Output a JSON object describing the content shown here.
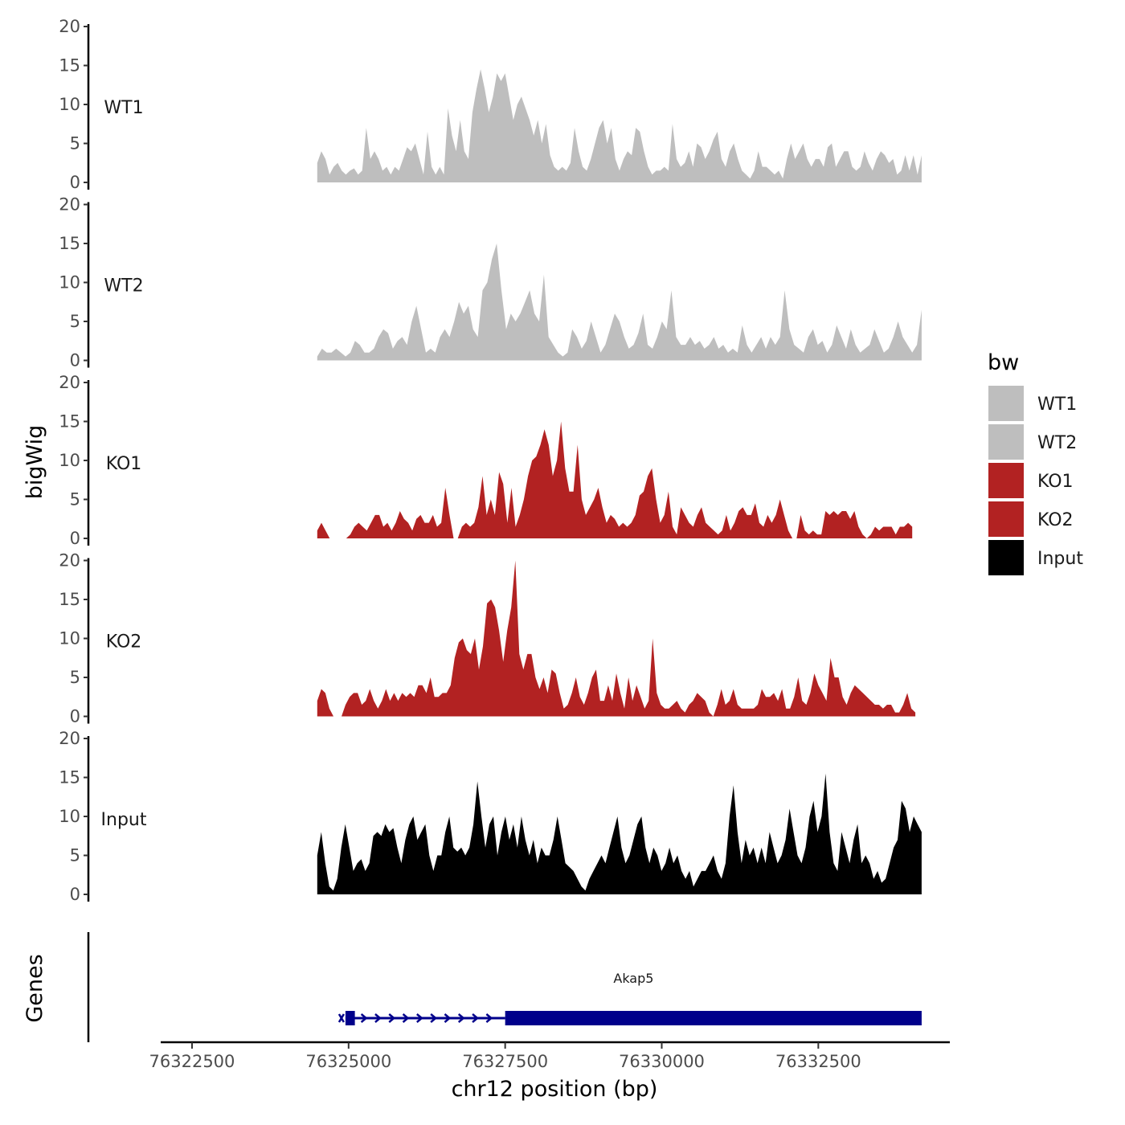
{
  "chart_data": {
    "type": "area",
    "ylabel": "bigWig",
    "genes_label": "Genes",
    "xlabel": "chr12 position (bp)",
    "xlim": [
      76322000,
      76334600
    ],
    "xticks": [
      76322500,
      76325000,
      76327500,
      76330000,
      76332500
    ],
    "xtick_labels": [
      "76322500",
      "76325000",
      "76327500",
      "76330000",
      "76332500"
    ],
    "ylim": [
      0,
      20
    ],
    "yticks": [
      0,
      5,
      10,
      15,
      20
    ],
    "ytick_labels": [
      "0",
      "5",
      "10",
      "15",
      "20"
    ],
    "series": [
      {
        "name": "WT1",
        "color": "#bebebe",
        "x_start": 76324500,
        "x_end": 76334150,
        "values": [
          2.5,
          4,
          3,
          1,
          2,
          2.5,
          1.5,
          1,
          1.5,
          1.8,
          1,
          1.5,
          7,
          3,
          4,
          3,
          1.5,
          2,
          1,
          2,
          1.5,
          3,
          4.5,
          4,
          5,
          3,
          1,
          6.5,
          2,
          1,
          2,
          1,
          9.5,
          6,
          4,
          8,
          4,
          3,
          9,
          12,
          14.5,
          12,
          9,
          11,
          14,
          13,
          14,
          11,
          8,
          10,
          11,
          9.5,
          8,
          6,
          8,
          5,
          7.5,
          3.5,
          2,
          1.5,
          2,
          1.5,
          2.5,
          7,
          4,
          2,
          1.5,
          3,
          5,
          7,
          8,
          5,
          7,
          3,
          1.5,
          3,
          4,
          3.5,
          7,
          6.5,
          4,
          2,
          1,
          1.5,
          1.5,
          2,
          1.5,
          7.5,
          3,
          2,
          2.5,
          4,
          2,
          5,
          4.5,
          3,
          4,
          5.5,
          6.5,
          3,
          2,
          4,
          5,
          3,
          1.5,
          1,
          0.5,
          1.5,
          4,
          2,
          2,
          1.5,
          1,
          1.5,
          0.5,
          3,
          5,
          3,
          4,
          5,
          3,
          2,
          3,
          3,
          2,
          4.5,
          5,
          2,
          3,
          4,
          4,
          2,
          1.5,
          2,
          4,
          2.5,
          1.5,
          3,
          4,
          3.5,
          2.5,
          3,
          1,
          1.5,
          3.5,
          1.5,
          3.5,
          1,
          3.5
        ]
      },
      {
        "name": "WT2",
        "color": "#bebebe",
        "x_start": 76324500,
        "x_end": 76334150,
        "values": [
          0.5,
          1.5,
          1,
          1,
          1.5,
          1,
          0.5,
          1,
          2.5,
          2,
          1,
          1,
          1.5,
          3,
          4,
          3.5,
          1.5,
          2.5,
          3,
          2,
          5,
          7,
          4,
          1,
          1.5,
          1,
          3,
          4,
          3,
          5,
          7.5,
          6,
          7,
          4,
          3,
          9,
          10,
          13,
          15,
          9,
          4,
          6,
          5,
          6,
          7.5,
          9,
          6,
          5,
          11,
          3,
          2,
          1,
          0.5,
          1,
          4,
          3,
          1.5,
          2.5,
          5,
          3,
          1,
          2,
          4,
          6,
          5,
          3,
          1.5,
          2,
          3.5,
          6,
          2,
          1.5,
          3,
          5,
          4,
          9,
          3,
          2,
          2,
          3,
          2,
          2.5,
          1.5,
          2,
          3,
          1.5,
          2,
          1,
          1.5,
          1,
          4.5,
          2,
          1,
          2,
          3,
          1.5,
          3,
          2,
          3,
          9,
          4,
          2,
          1.5,
          1,
          3,
          4,
          2,
          2.5,
          1,
          2,
          4.5,
          3,
          1.5,
          4,
          2,
          1,
          1.5,
          2,
          4,
          2.5,
          1,
          1.5,
          3,
          5,
          3,
          2,
          1,
          2,
          6.5
        ]
      },
      {
        "name": "KO1",
        "color": "#b22222",
        "x_start": 76324500,
        "x_end": 76334000,
        "values": [
          1,
          2,
          1,
          0,
          0,
          0,
          0,
          0,
          0.5,
          1.5,
          2,
          1.5,
          1,
          2,
          3,
          3,
          1.5,
          2,
          1,
          2,
          3.5,
          2.5,
          2,
          1,
          2.5,
          3,
          2,
          2,
          3,
          1.5,
          2,
          6.5,
          3,
          0,
          0,
          1.5,
          2,
          1.5,
          2,
          4,
          8,
          3,
          5,
          3,
          8.5,
          7,
          2,
          6.5,
          1.5,
          3,
          5,
          8,
          10,
          10.5,
          12,
          14,
          12,
          8,
          10,
          15,
          9,
          6,
          6,
          12,
          5,
          3,
          4,
          5,
          6.5,
          4,
          2,
          3,
          2.5,
          1.5,
          2,
          1.5,
          2,
          3,
          5.5,
          6,
          8,
          9,
          5,
          2,
          3,
          6,
          1.5,
          0.5,
          4,
          3,
          2,
          1.5,
          3,
          4,
          2,
          1.5,
          1,
          0.5,
          1,
          3,
          1,
          2,
          3.5,
          4,
          3,
          3,
          4.5,
          2,
          1.5,
          3,
          2,
          3,
          5,
          3,
          1,
          0,
          0,
          3,
          1,
          0.5,
          1,
          0.5,
          0.5,
          3.5,
          3,
          3.5,
          3,
          3.5,
          3.5,
          2.5,
          3.5,
          1.5,
          0.5,
          0,
          0.5,
          1.5,
          1,
          1.5,
          1.5,
          1.5,
          0.5,
          1.5,
          1.5,
          2,
          1.5
        ]
      },
      {
        "name": "KO2",
        "color": "#b22222",
        "x_start": 76324500,
        "x_end": 76334050,
        "values": [
          2,
          3.5,
          3,
          1,
          0,
          0,
          0,
          1.5,
          2.5,
          3,
          3,
          1.5,
          2,
          3.5,
          2,
          1,
          2,
          3.5,
          2,
          3,
          2,
          3,
          2.5,
          3,
          2.5,
          4,
          4,
          3,
          5,
          2.5,
          2.5,
          3,
          3,
          4,
          7.5,
          9.5,
          10,
          8.5,
          8,
          10,
          6,
          9,
          14.5,
          15,
          14,
          11,
          7,
          11,
          14,
          20,
          8,
          6,
          8,
          8,
          5,
          3.5,
          5,
          3,
          6,
          5.5,
          3,
          1,
          1.5,
          3,
          5,
          2.5,
          1.5,
          3,
          5,
          6,
          2,
          2,
          4,
          2,
          5.5,
          3,
          1,
          5,
          2,
          4,
          2.5,
          1,
          2,
          10,
          3,
          1.5,
          1,
          1,
          1.5,
          2,
          1,
          0.5,
          1.5,
          2,
          3,
          2.5,
          2,
          0.5,
          0,
          1.5,
          3.5,
          1.5,
          2,
          3.5,
          1.5,
          1,
          1,
          1,
          1,
          1.5,
          3.5,
          2.5,
          2.5,
          3,
          2,
          3.5,
          1,
          1,
          2.5,
          5,
          2,
          1.5,
          3,
          5.5,
          4,
          3,
          2,
          7.5,
          5,
          5,
          2.5,
          1.5,
          3,
          4,
          3.5,
          3,
          2.5,
          2,
          1.5,
          1.5,
          1,
          1.5,
          1.5,
          0.5,
          0.5,
          1.5,
          3,
          1,
          0.5
        ]
      },
      {
        "name": "Input",
        "color": "#000000",
        "x_start": 76324500,
        "x_end": 76334150,
        "values": [
          5,
          8,
          4,
          1,
          0.5,
          2,
          6,
          9,
          6,
          3,
          4,
          4.5,
          3,
          4,
          7.5,
          8,
          7.5,
          9,
          8,
          8.5,
          6,
          4,
          7,
          9,
          10,
          7,
          8,
          9,
          5,
          3,
          5,
          5,
          8,
          10,
          6,
          5.5,
          6,
          5,
          6,
          9,
          14.5,
          10,
          6,
          9,
          10,
          5,
          8,
          10,
          7,
          9,
          6,
          10,
          7,
          5,
          7,
          4,
          6,
          5,
          5,
          7,
          10,
          7,
          4,
          3.5,
          3,
          2,
          1,
          0.5,
          2,
          3,
          4,
          5,
          4,
          6,
          8,
          10,
          6,
          4,
          5,
          7,
          9,
          10,
          6,
          4,
          6,
          5,
          3,
          4,
          6,
          4,
          5,
          3,
          2,
          3,
          1,
          2,
          3,
          3,
          4,
          5,
          3,
          2,
          4,
          10,
          14,
          8,
          4,
          7,
          5,
          6,
          4,
          6,
          4,
          8,
          6,
          4,
          5,
          7,
          11,
          8,
          5,
          4,
          6,
          10,
          12,
          8,
          10,
          15.5,
          8,
          4,
          3,
          8,
          6,
          4,
          7,
          9,
          4,
          5,
          4,
          2,
          3,
          1.5,
          2,
          4,
          6,
          7,
          12,
          11,
          8,
          10,
          9,
          8
        ]
      }
    ],
    "gene": {
      "name": "Akap5",
      "strand": "+",
      "utr5": [
        76324950,
        76325100
      ],
      "cds": [
        76327500,
        76334150
      ],
      "intron_arrow_count": 10,
      "color": "#00008b"
    },
    "legend": {
      "title": "bw",
      "position": "right",
      "entries": [
        {
          "label": "WT1",
          "color": "#bebebe"
        },
        {
          "label": "WT2",
          "color": "#bebebe"
        },
        {
          "label": "KO1",
          "color": "#b22222"
        },
        {
          "label": "KO2",
          "color": "#b22222"
        },
        {
          "label": "Input",
          "color": "#000000"
        }
      ]
    }
  }
}
